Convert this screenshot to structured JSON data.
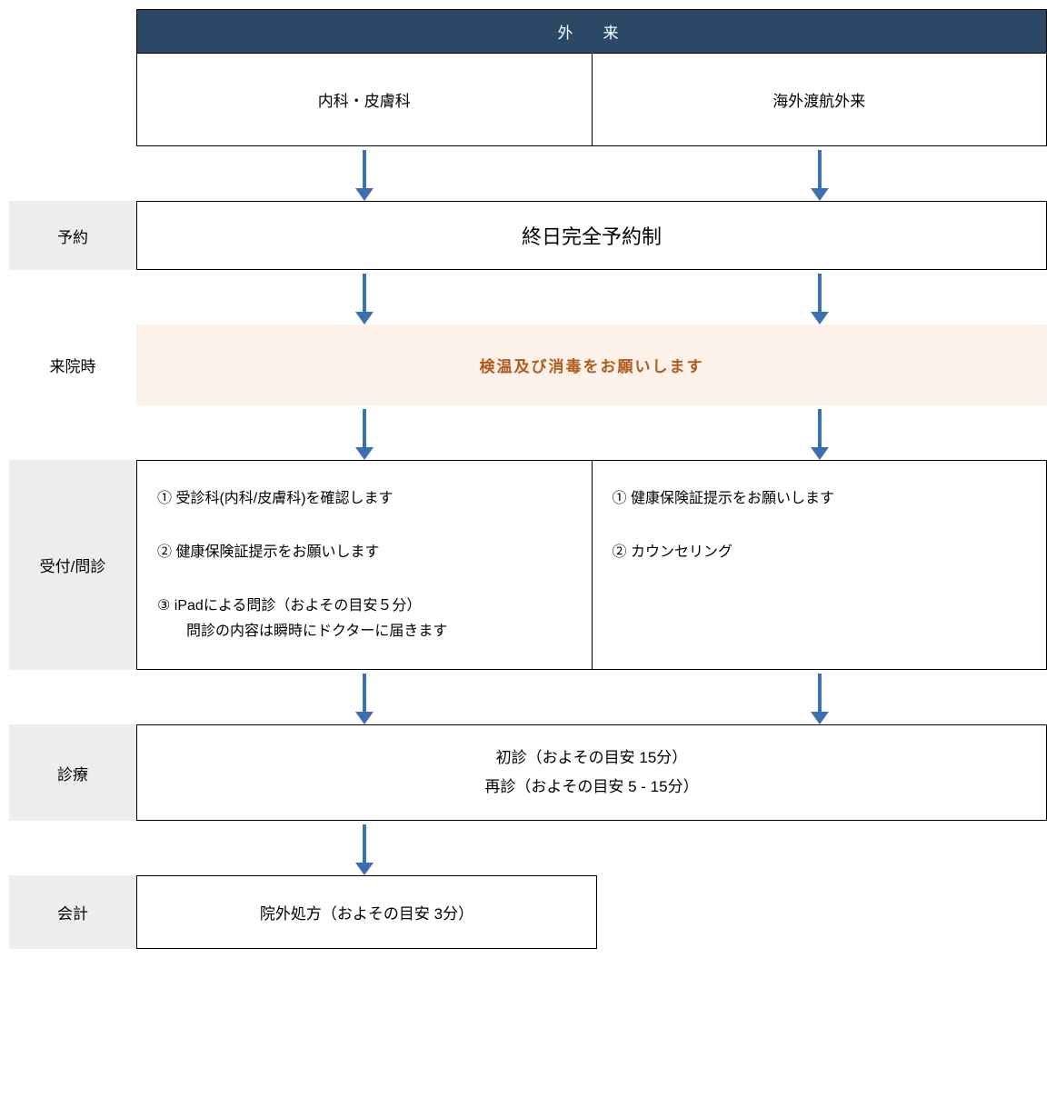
{
  "flowchart": {
    "type": "flowchart",
    "background_color": "#ffffff",
    "border_color": "#000000",
    "arrow_color": "#3a6fb0",
    "header": {
      "bg_color": "#2c4867",
      "text_color": "#ffffff",
      "title": "外　来"
    },
    "departments": {
      "left": "内科・皮膚科",
      "right": "海外渡航外来"
    },
    "stages": {
      "booking": {
        "label": "予約",
        "label_bg": "#ededed",
        "content": "終日完全予約制",
        "fontsize": 22
      },
      "arrival": {
        "label": "来院時",
        "label_bg": "#ffffff",
        "content": "検温及び消毒をお願いします",
        "content_bg": "#fdf2ea",
        "content_color": "#b15a1e"
      },
      "reception": {
        "label": "受付/問診",
        "label_bg": "#ededed",
        "left_items": [
          "① 受診科(内科/皮膚科)を確認します",
          "② 健康保険証提示をお願いします",
          "③ iPadによる問診（およその目安５分）"
        ],
        "left_sub": "問診の内容は瞬時にドクターに届きます",
        "right_items": [
          "① 健康保険証提示をお願いします",
          "② カウンセリング"
        ]
      },
      "exam": {
        "label": "診療",
        "label_bg": "#ededed",
        "line1": "初診（およその目安 15分）",
        "line2": "再診（およその目安 5 - 15分）"
      },
      "payment": {
        "label": "会計",
        "label_bg": "#ededed",
        "content": "院外処方（およその目安 3分）"
      }
    }
  }
}
